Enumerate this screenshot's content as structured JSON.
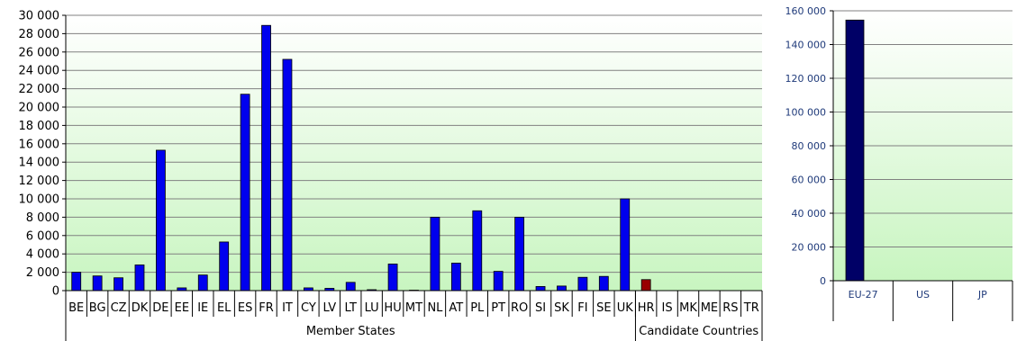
{
  "chart_data": [
    {
      "type": "bar",
      "categories": [
        "BE",
        "BG",
        "CZ",
        "DK",
        "DE",
        "EE",
        "IE",
        "EL",
        "ES",
        "FR",
        "IT",
        "CY",
        "LV",
        "LT",
        "LU",
        "HU",
        "MT",
        "NL",
        "AT",
        "PL",
        "PT",
        "RO",
        "SI",
        "SK",
        "FI",
        "SE",
        "UK",
        "HR",
        "IS",
        "MK",
        "ME",
        "RS",
        "TR"
      ],
      "values": [
        2000,
        1600,
        1400,
        2800,
        15300,
        300,
        1700,
        5300,
        21400,
        28900,
        25200,
        300,
        250,
        900,
        100,
        2900,
        50,
        8000,
        3000,
        8700,
        2100,
        8000,
        450,
        500,
        1450,
        1550,
        10000,
        1200,
        0,
        0,
        0,
        0,
        0
      ],
      "bar_colors": [
        "#0000ee",
        "#0000ee",
        "#0000ee",
        "#0000ee",
        "#0000ee",
        "#0000ee",
        "#0000ee",
        "#0000ee",
        "#0000ee",
        "#0000ee",
        "#0000ee",
        "#0000ee",
        "#0000ee",
        "#0000ee",
        "#0000ee",
        "#0000ee",
        "#0000ee",
        "#0000ee",
        "#0000ee",
        "#0000ee",
        "#0000ee",
        "#0000ee",
        "#0000ee",
        "#0000ee",
        "#0000ee",
        "#0000ee",
        "#0000ee",
        "#990000",
        "#0000ee",
        "#0000ee",
        "#0000ee",
        "#0000ee",
        "#0000ee"
      ],
      "groups": [
        {
          "label": "Member States",
          "count": 27
        },
        {
          "label": "Candidate Countries",
          "count": 6
        }
      ],
      "ylim": [
        0,
        30000
      ],
      "yticks": [
        0,
        2000,
        4000,
        6000,
        8000,
        10000,
        12000,
        14000,
        16000,
        18000,
        20000,
        22000,
        24000,
        26000,
        28000,
        30000
      ],
      "ytick_labels": [
        "0",
        "2 000",
        "4 000",
        "6 000",
        "8 000",
        "10 000",
        "12 000",
        "14 000",
        "16 000",
        "18 000",
        "20 000",
        "22 000",
        "24 000",
        "26 000",
        "28 000",
        "30 000"
      ],
      "grid": true,
      "colors": {
        "plot_top": "#ffffff",
        "plot_bottom": "#c8f5c0",
        "grid": "#808080"
      }
    },
    {
      "type": "bar",
      "categories": [
        "EU-27",
        "US",
        "JP"
      ],
      "values": [
        154500,
        0,
        0
      ],
      "bar_colors": [
        "#000066",
        "#000066",
        "#000066"
      ],
      "ylim": [
        0,
        160000
      ],
      "yticks": [
        0,
        20000,
        40000,
        60000,
        80000,
        100000,
        120000,
        140000,
        160000
      ],
      "ytick_labels": [
        "0",
        "20 000",
        "40 000",
        "60 000",
        "80 000",
        "100 000",
        "120 000",
        "140 000",
        "160 000"
      ],
      "grid": true,
      "colors": {
        "plot_top": "#ffffff",
        "plot_bottom": "#c8f5c0",
        "grid": "#808080",
        "tick_text": "#1f3a7a"
      }
    }
  ]
}
